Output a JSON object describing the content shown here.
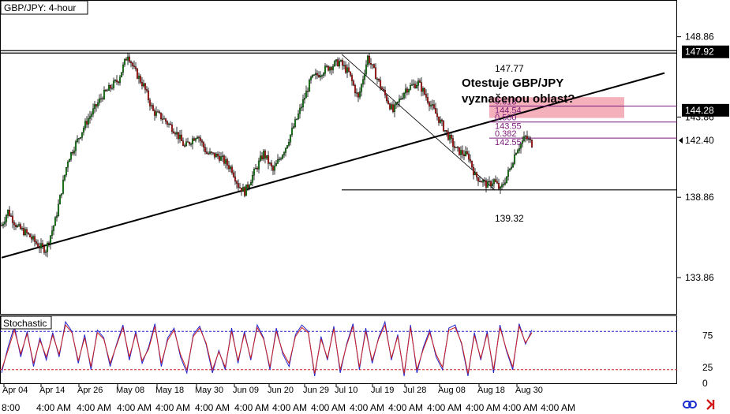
{
  "chart_data": [
    {
      "type": "candlestick",
      "title": "GBP/JPY: 4-hour",
      "annotation": "Otestuje GBP/JPY\nvyznačenou oblast?",
      "ylim": [
        131.6,
        151.1
      ],
      "ytick_labels": [
        "148.86",
        "143.86",
        "138.86",
        "133.86"
      ],
      "price_labels": [
        {
          "value": "147.92",
          "y": 147.92,
          "style": "dark"
        },
        {
          "value": "144.28",
          "y": 144.28,
          "style": "dark"
        },
        {
          "value": "142.40",
          "y": 142.4,
          "style": "plain"
        }
      ],
      "xtick_labels": [
        "Apr 04",
        "Apr 14",
        "Apr 26",
        "May 08",
        "May 18",
        "May 30",
        "Jun 09",
        "Jun 20",
        "Jun 29",
        "Jul 10",
        "Jul 19",
        "Jul 28",
        "Aug 08",
        "Aug 18",
        "Aug 30"
      ],
      "time_labels": [
        "8:00",
        "4:00 AM",
        "4:00 AM",
        "4:00 AM",
        "4:00 AM",
        "4:00 AM",
        "4:00 AM",
        "4:00 AM",
        "4:00 AM",
        "4:00 AM",
        "4:00 AM",
        "4:00 AM",
        "4:00 AM",
        "4:00 AM",
        "4:00 AM"
      ],
      "swing_high": {
        "label": "147.77",
        "value": 147.77
      },
      "swing_low": {
        "label": "139.32",
        "value": 139.32
      },
      "resistance": 147.92,
      "fibonacci": [
        {
          "ratio": "0.618",
          "price": "144.54",
          "y": 144.54
        },
        {
          "ratio": "0.500",
          "price": "143.55",
          "y": 143.55
        },
        {
          "ratio": "0.382",
          "price": "142.55",
          "y": 142.55
        }
      ],
      "zone": {
        "from": 143.8,
        "to": 145.1
      },
      "trendline": {
        "from": {
          "bar": 0,
          "y": 135.1
        },
        "to": {
          "bar": 420,
          "y": 146.6
        }
      },
      "price_anchors": [
        [
          0,
          137.1
        ],
        [
          4,
          138.0
        ],
        [
          10,
          137.0
        ],
        [
          16,
          136.6
        ],
        [
          24,
          135.8
        ],
        [
          28,
          135.6
        ],
        [
          34,
          137.4
        ],
        [
          42,
          141.2
        ],
        [
          54,
          143.6
        ],
        [
          64,
          145.2
        ],
        [
          74,
          146.2
        ],
        [
          80,
          147.8
        ],
        [
          84,
          146.8
        ],
        [
          90,
          145.8
        ],
        [
          96,
          144.2
        ],
        [
          102,
          143.8
        ],
        [
          110,
          143.0
        ],
        [
          116,
          142.0
        ],
        [
          124,
          142.8
        ],
        [
          130,
          141.6
        ],
        [
          138,
          141.4
        ],
        [
          146,
          140.6
        ],
        [
          150,
          139.6
        ],
        [
          154,
          139.2
        ],
        [
          160,
          140.4
        ],
        [
          166,
          141.6
        ],
        [
          172,
          140.5
        ],
        [
          180,
          142.0
        ],
        [
          188,
          144.0
        ],
        [
          196,
          146.2
        ],
        [
          206,
          146.9
        ],
        [
          214,
          147.3
        ],
        [
          220,
          146.6
        ],
        [
          226,
          145.0
        ],
        [
          232,
          147.6
        ],
        [
          240,
          145.8
        ],
        [
          248,
          144.2
        ],
        [
          256,
          145.6
        ],
        [
          264,
          146.0
        ],
        [
          272,
          144.6
        ],
        [
          280,
          143.2
        ],
        [
          288,
          141.8
        ],
        [
          296,
          141.4
        ],
        [
          300,
          140.2
        ],
        [
          308,
          139.6
        ],
        [
          312,
          139.9
        ],
        [
          316,
          139.3
        ],
        [
          322,
          140.6
        ],
        [
          326,
          141.8
        ],
        [
          332,
          142.6
        ],
        [
          336,
          142.2
        ]
      ]
    },
    {
      "type": "line",
      "title": "Stochastic",
      "ylim": [
        0,
        100
      ],
      "ytick_labels": [
        "75",
        "25",
        "0"
      ],
      "levels": [
        80,
        20
      ],
      "series": [
        {
          "name": "",
          "values": [
            15,
            55,
            88,
            40,
            80,
            25,
            70,
            35,
            78,
            40,
            95,
            80,
            30,
            75,
            20,
            82,
            70,
            25,
            60,
            90,
            35,
            80,
            30,
            55,
            92,
            25,
            70,
            85,
            40,
            15,
            75,
            88,
            60,
            15,
            50,
            20,
            85,
            30,
            80,
            35,
            90,
            70,
            20,
            85,
            45,
            25,
            75,
            90,
            80,
            10,
            72,
            35,
            88,
            15,
            60,
            92,
            20,
            85,
            30,
            70,
            95,
            35,
            75,
            10,
            90,
            15,
            55,
            82,
            40,
            20,
            85,
            90,
            60,
            10,
            78,
            35,
            80,
            15,
            90,
            50,
            20,
            92,
            60,
            82
          ]
        },
        {
          "name": "",
          "values": [
            20,
            50,
            82,
            45,
            76,
            30,
            66,
            40,
            74,
            44,
            90,
            78,
            34,
            70,
            25,
            78,
            68,
            30,
            58,
            86,
            40,
            76,
            34,
            52,
            88,
            30,
            66,
            82,
            44,
            20,
            72,
            85,
            62,
            20,
            48,
            24,
            80,
            34,
            76,
            38,
            86,
            68,
            24,
            80,
            48,
            30,
            72,
            86,
            78,
            14,
            68,
            38,
            84,
            20,
            58,
            88,
            24,
            80,
            34,
            68,
            90,
            38,
            72,
            14,
            86,
            20,
            52,
            78,
            44,
            24,
            82,
            86,
            62,
            14,
            74,
            38,
            76,
            20,
            86,
            52,
            24,
            88,
            62,
            78
          ]
        }
      ]
    }
  ]
}
